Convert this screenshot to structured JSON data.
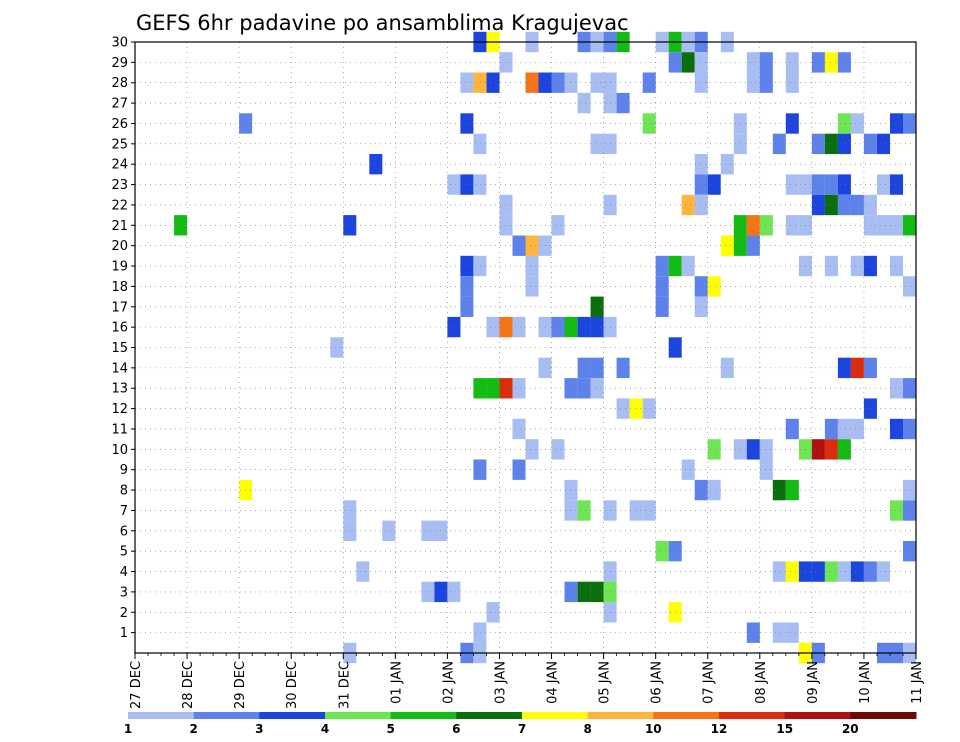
{
  "chart_data": {
    "type": "heatmap",
    "title": "GEFS 6hr padavine po ansamblima Kragujevac",
    "xlabel": "",
    "ylabel": "",
    "x_ticks": [
      "27 DEC",
      "28 DEC",
      "29 DEC",
      "30 DEC",
      "31 DEC",
      "01 JAN",
      "02 JAN",
      "03 JAN",
      "04 JAN",
      "05 JAN",
      "06 JAN",
      "07 JAN",
      "08 JAN",
      "09 JAN",
      "10 JAN",
      "11 JAN"
    ],
    "y_ticks": [
      "1",
      "2",
      "3",
      "4",
      "5",
      "6",
      "7",
      "8",
      "9",
      "10",
      "11",
      "12",
      "13",
      "14",
      "15",
      "16",
      "17",
      "18",
      "19",
      "20",
      "21",
      "22",
      "23",
      "24",
      "25",
      "26",
      "27",
      "28",
      "29",
      "30"
    ],
    "grid": true,
    "time_steps_per_day": 4,
    "members": 31,
    "legend": {
      "placement": "bottom",
      "labels": [
        "1",
        "2",
        "3",
        "4",
        "5",
        "6",
        "7",
        "8",
        "10",
        "12",
        "15",
        "20"
      ],
      "colors": [
        "#a8bef2",
        "#5e82ec",
        "#1c44de",
        "#6ee654",
        "#12bc12",
        "#0a6e0a",
        "#ffff00",
        "#ffb43c",
        "#f47416",
        "#dc2c0e",
        "#b01010",
        "#700808"
      ]
    },
    "cells": [
      [
        0,
        55,
        1
      ],
      [
        0,
        58,
        1
      ],
      [
        0,
        59,
        2
      ],
      [
        0,
        60,
        2
      ],
      [
        1,
        72,
        1
      ],
      [
        1,
        75,
        1
      ],
      [
        1,
        76,
        1
      ],
      [
        1,
        78,
        1
      ],
      [
        2,
        69,
        3
      ],
      [
        2,
        70,
        3
      ],
      [
        2,
        81,
        6
      ],
      [
        2,
        84,
        2
      ],
      [
        2,
        108,
        1
      ],
      [
        2,
        109,
        2
      ],
      [
        2,
        110,
        1
      ],
      [
        2,
        113,
        1
      ],
      [
        2,
        114,
        1
      ],
      [
        2,
        115,
        1
      ],
      [
        2,
        116,
        1
      ],
      [
        2,
        117,
        1
      ],
      [
        2,
        118,
        2
      ],
      [
        2,
        119,
        1
      ],
      [
        2,
        120,
        2
      ],
      [
        2,
        123,
        1
      ],
      [
        2,
        124,
        1
      ],
      [
        2,
        126,
        1
      ],
      [
        2,
        128,
        1
      ],
      [
        2,
        131,
        1
      ],
      [
        2,
        132,
        2
      ],
      [
        2,
        133,
        1
      ],
      [
        2,
        134,
        1
      ],
      [
        2,
        136,
        1
      ],
      [
        2,
        137,
        1
      ],
      [
        2,
        138,
        1
      ],
      [
        2,
        140,
        1
      ],
      [
        2,
        143,
        1
      ],
      [
        2,
        144,
        1
      ],
      [
        2,
        145,
        1
      ],
      [
        2,
        148,
        1
      ],
      [
        2,
        152,
        1
      ],
      [
        2,
        153,
        1
      ],
      [
        2,
        155,
        1
      ],
      [
        2,
        156,
        1
      ],
      [
        2,
        158,
        1
      ],
      [
        2,
        159,
        1
      ],
      [
        2,
        163,
        1
      ],
      [
        2,
        165,
        1
      ],
      [
        2,
        167,
        1
      ],
      [
        2,
        168,
        1
      ],
      [
        2,
        169,
        1
      ],
      [
        2,
        170,
        1
      ],
      [
        2,
        172,
        1
      ],
      [
        2,
        174,
        1
      ],
      [
        2,
        175,
        1
      ],
      [
        2,
        176,
        1
      ],
      [
        2,
        177,
        1
      ],
      [
        2,
        178,
        1
      ],
      [
        2,
        179,
        2
      ],
      [
        2,
        180,
        2
      ],
      [
        2,
        181,
        1
      ],
      [
        2,
        182,
        1
      ],
      [
        2,
        184,
        1
      ],
      [
        2,
        186,
        1
      ],
      [
        2,
        188,
        2
      ],
      [
        2,
        190,
        1
      ],
      [
        2,
        191,
        1
      ],
      [
        2,
        193,
        2
      ],
      [
        2,
        195,
        1
      ],
      [
        2,
        196,
        1
      ],
      [
        2,
        197,
        1
      ],
      [
        2,
        198,
        1
      ],
      [
        2,
        200,
        1
      ],
      [
        2,
        201,
        2
      ],
      [
        2,
        202,
        1
      ],
      [
        2,
        203,
        1
      ],
      [
        2,
        205,
        1
      ],
      [
        2,
        207,
        1
      ],
      [
        2,
        208,
        1
      ],
      [
        2,
        210,
        1
      ],
      [
        2,
        211,
        1
      ],
      [
        2,
        212,
        1
      ],
      [
        2,
        213,
        1
      ],
      [
        2,
        214,
        1
      ],
      [
        2,
        215,
        2
      ],
      [
        2,
        217,
        1
      ],
      [
        2,
        219,
        1
      ],
      [
        2,
        220,
        2
      ],
      [
        2,
        222,
        1
      ],
      [
        2,
        224,
        1
      ],
      [
        2,
        225,
        1
      ],
      [
        2,
        226,
        1
      ],
      [
        2,
        227,
        1
      ],
      [
        2,
        229,
        1
      ],
      [
        2,
        231,
        1
      ],
      [
        2,
        232,
        1
      ],
      [
        2,
        233,
        1
      ],
      [
        2,
        234,
        1
      ],
      [
        2,
        236,
        1
      ],
      [
        2,
        238,
        1
      ],
      [
        2,
        239,
        1
      ],
      [
        2,
        240,
        1
      ],
      [
        2,
        242,
        1
      ],
      [
        2,
        243,
        1
      ],
      [
        2,
        244,
        2
      ],
      [
        2,
        245,
        1
      ],
      [
        2,
        246,
        2
      ],
      [
        2,
        248,
        1
      ],
      [
        2,
        249,
        1
      ],
      [
        2,
        250,
        1
      ],
      [
        2,
        251,
        1
      ],
      [
        2,
        253,
        1
      ],
      [
        2,
        254,
        1
      ],
      [
        2,
        256,
        2
      ],
      [
        2,
        257,
        1
      ],
      [
        2,
        259,
        1
      ],
      [
        2,
        260,
        1
      ],
      [
        2,
        262,
        2
      ],
      [
        2,
        263,
        1
      ],
      [
        2,
        264,
        1
      ],
      [
        2,
        265,
        1
      ],
      [
        2,
        266,
        1
      ],
      [
        2,
        267,
        1
      ],
      [
        2,
        268,
        1
      ],
      [
        2,
        269,
        1
      ],
      [
        2,
        271,
        1
      ],
      [
        2,
        272,
        1
      ],
      [
        2,
        273,
        1
      ],
      [
        2,
        274,
        1
      ]
    ]
  },
  "cells_note_removed": true
}
